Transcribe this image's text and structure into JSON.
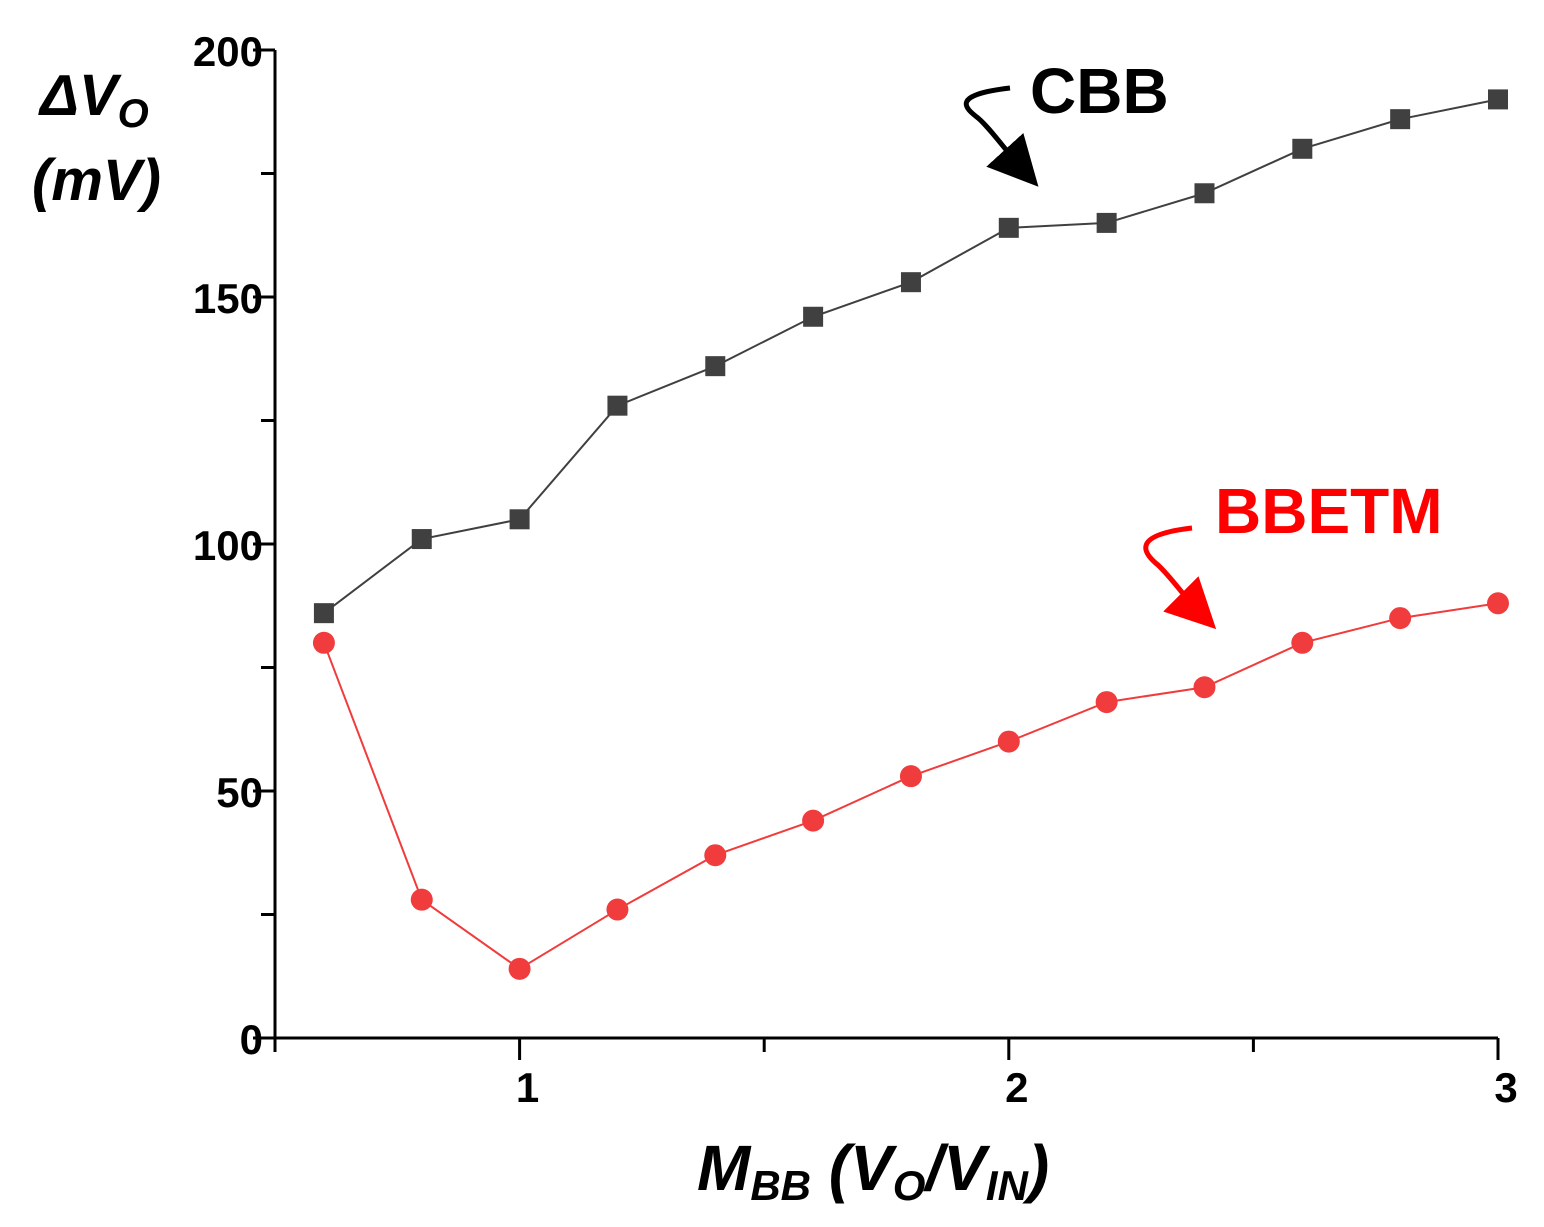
{
  "chart_data": {
    "type": "line",
    "xlabel": {
      "main": "M",
      "main_sub": "BB",
      "open": " (",
      "v1": "V",
      "v1_sub": "O",
      "slash": "/",
      "v2": "V",
      "v2_sub": "IN",
      "close": ")"
    },
    "ylabel": {
      "line1_main": "ΔV",
      "line1_sub": "O",
      "line2": "(mV)"
    },
    "xlim": [
      0.5,
      3.0
    ],
    "ylim": [
      0,
      200
    ],
    "x_ticks": [
      {
        "value": 1,
        "label": "1"
      },
      {
        "value": 2,
        "label": "2"
      },
      {
        "value": 3,
        "label": "3"
      }
    ],
    "x_minor_ticks": [
      0.5,
      1.5,
      2.5
    ],
    "y_ticks": [
      {
        "value": 0,
        "label": "0"
      },
      {
        "value": 50,
        "label": "50"
      },
      {
        "value": 100,
        "label": "100"
      },
      {
        "value": 150,
        "label": "150"
      },
      {
        "value": 200,
        "label": "200"
      }
    ],
    "y_minor_ticks": [
      25,
      75,
      125,
      175
    ],
    "x": [
      0.6,
      0.8,
      1.0,
      1.2,
      1.4,
      1.6,
      1.8,
      2.0,
      2.2,
      2.4,
      2.6,
      2.8,
      3.0
    ],
    "series": [
      {
        "name": "CBB",
        "color": "#404040",
        "marker": "square",
        "values": [
          86,
          101,
          105,
          128,
          136,
          146,
          153,
          164,
          165,
          171,
          180,
          186,
          190
        ]
      },
      {
        "name": "BBETM",
        "color": "#f03c3c",
        "marker": "circle",
        "values": [
          80,
          28,
          14,
          26,
          37,
          44,
          53,
          60,
          68,
          71,
          80,
          85,
          88
        ]
      }
    ],
    "annotations": [
      {
        "text": "CBB",
        "color": "#000000"
      },
      {
        "text": "BBETM",
        "color": "#ff0000"
      }
    ]
  }
}
